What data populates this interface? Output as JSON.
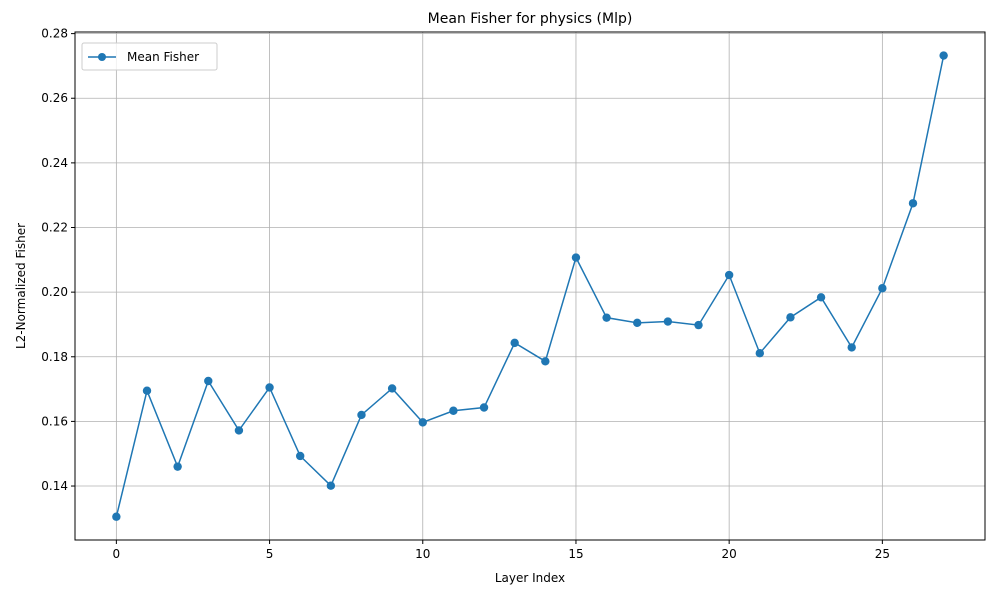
{
  "chart_data": {
    "type": "line",
    "title": "Mean Fisher for physics (Mlp)",
    "xlabel": "Layer Index",
    "ylabel": "L2-Normalized Fisher",
    "xlim": [
      -1.35,
      28.35
    ],
    "ylim": [
      0.1233,
      0.2805
    ],
    "xticks": [
      0,
      5,
      10,
      15,
      20,
      25
    ],
    "yticks": [
      0.14,
      0.16,
      0.18,
      0.2,
      0.22,
      0.24,
      0.26,
      0.28
    ],
    "ytick_labels": [
      "0.14",
      "0.16",
      "0.18",
      "0.20",
      "0.22",
      "0.24",
      "0.26",
      "0.28"
    ],
    "grid": true,
    "legend_position": "top-left",
    "series": [
      {
        "name": "Mean Fisher",
        "color": "#1f77b4",
        "marker": "circle",
        "x": [
          0,
          1,
          2,
          3,
          4,
          5,
          6,
          7,
          8,
          9,
          10,
          11,
          12,
          13,
          14,
          15,
          16,
          17,
          18,
          19,
          20,
          21,
          22,
          23,
          24,
          25,
          26,
          27
        ],
        "y": [
          0.1305,
          0.1695,
          0.146,
          0.1725,
          0.1572,
          0.1705,
          0.1493,
          0.1401,
          0.162,
          0.1702,
          0.1597,
          0.1633,
          0.1643,
          0.1843,
          0.1786,
          0.2107,
          0.1921,
          0.1905,
          0.1909,
          0.1898,
          0.2053,
          0.1811,
          0.1922,
          0.1984,
          0.1829,
          0.2012,
          0.2275,
          0.2732
        ]
      }
    ]
  }
}
